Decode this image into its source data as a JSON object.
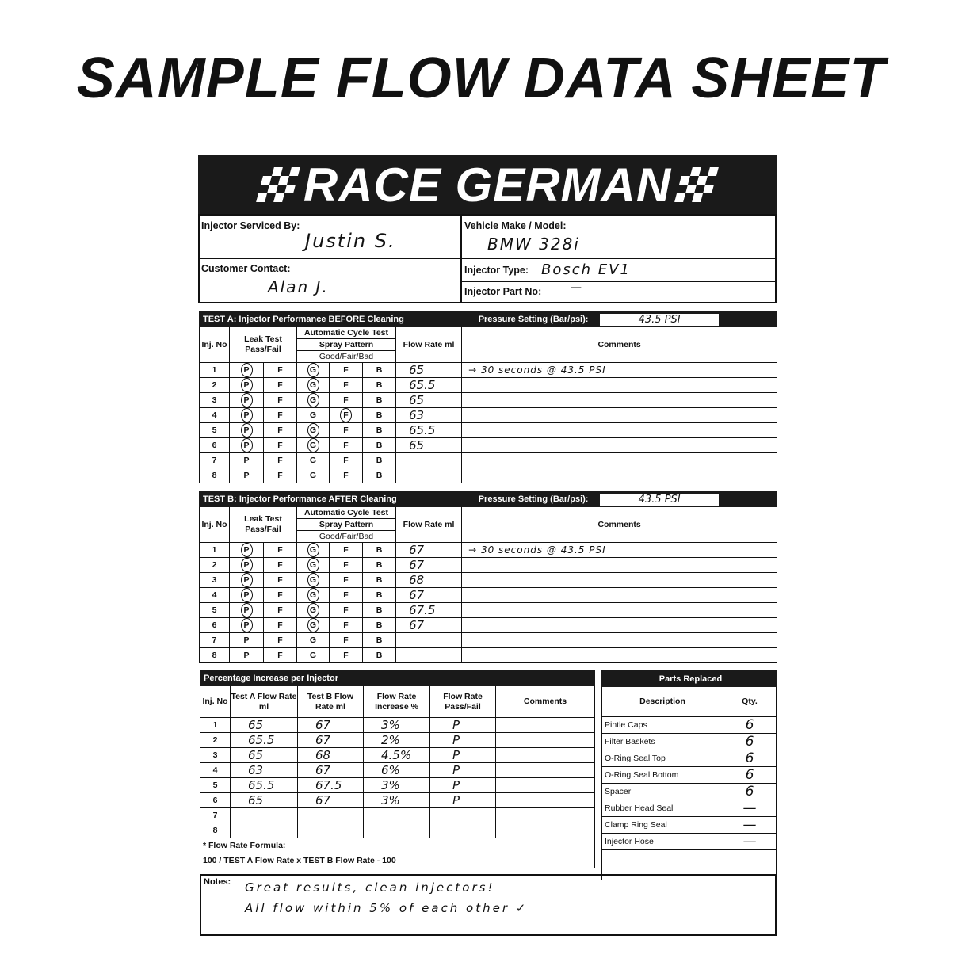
{
  "page_title": "SAMPLE FLOW DATA SHEET",
  "brand": {
    "name": "RACE GERMAN",
    "logo_icon": "checkered-flag-icon"
  },
  "info": {
    "serviced_by_label": "Injector Serviced By:",
    "serviced_by": "Justin S.",
    "vehicle_label": "Vehicle Make / Model:",
    "vehicle": "BMW 328i",
    "customer_label": "Customer Contact:",
    "customer": "Alan J.",
    "type_label": "Injector Type:",
    "type": "Bosch EV1",
    "part_label": "Injector Part No:",
    "part": "—"
  },
  "test_headers": {
    "inj": "Inj. No",
    "leak": "Leak Test Pass/Fail",
    "cycle": "Automatic Cycle Test",
    "spray": "Spray Pattern",
    "gfb": "Good/Fair/Bad",
    "flow": "Flow Rate ml",
    "comments": "Comments",
    "pressure_label": "Pressure Setting (Bar/psi):"
  },
  "tests": [
    {
      "title": "TEST A: Injector Performance BEFORE Cleaning",
      "pressure": "43.5 PSI",
      "rows": [
        {
          "no": "1",
          "leak": "P",
          "spray": "G",
          "flow": "65",
          "comment": "→ 30 seconds @ 43.5 PSI"
        },
        {
          "no": "2",
          "leak": "P",
          "spray": "G",
          "flow": "65.5",
          "comment": ""
        },
        {
          "no": "3",
          "leak": "P",
          "spray": "G",
          "flow": "65",
          "comment": ""
        },
        {
          "no": "4",
          "leak": "P",
          "spray": "F",
          "flow": "63",
          "comment": ""
        },
        {
          "no": "5",
          "leak": "P",
          "spray": "G",
          "flow": "65.5",
          "comment": ""
        },
        {
          "no": "6",
          "leak": "P",
          "spray": "G",
          "flow": "65",
          "comment": ""
        },
        {
          "no": "7",
          "leak": "",
          "spray": "",
          "flow": "",
          "comment": ""
        },
        {
          "no": "8",
          "leak": "",
          "spray": "",
          "flow": "",
          "comment": ""
        }
      ]
    },
    {
      "title": "TEST B: Injector Performance AFTER Cleaning",
      "pressure": "43.5 PSI",
      "rows": [
        {
          "no": "1",
          "leak": "P",
          "spray": "G",
          "flow": "67",
          "comment": "→ 30 seconds @ 43.5 PSI"
        },
        {
          "no": "2",
          "leak": "P",
          "spray": "G",
          "flow": "67",
          "comment": ""
        },
        {
          "no": "3",
          "leak": "P",
          "spray": "G",
          "flow": "68",
          "comment": ""
        },
        {
          "no": "4",
          "leak": "P",
          "spray": "G",
          "flow": "67",
          "comment": ""
        },
        {
          "no": "5",
          "leak": "P",
          "spray": "G",
          "flow": "67.5",
          "comment": ""
        },
        {
          "no": "6",
          "leak": "P",
          "spray": "G",
          "flow": "67",
          "comment": ""
        },
        {
          "no": "7",
          "leak": "",
          "spray": "",
          "flow": "",
          "comment": ""
        },
        {
          "no": "8",
          "leak": "",
          "spray": "",
          "flow": "",
          "comment": ""
        }
      ]
    }
  ],
  "options": {
    "pass": "P",
    "fail": "F",
    "good": "G",
    "fair": "F",
    "bad": "B"
  },
  "percentage": {
    "title": "Percentage Increase per Injector",
    "headers": [
      "Inj. No",
      "Test A Flow Rate ml",
      "Test B Flow Rate ml",
      "Flow Rate Increase %",
      "Flow Rate Pass/Fail",
      "Comments"
    ],
    "rows": [
      [
        "1",
        "65",
        "67",
        "3%",
        "P",
        ""
      ],
      [
        "2",
        "65.5",
        "67",
        "2%",
        "P",
        ""
      ],
      [
        "3",
        "65",
        "68",
        "4.5%",
        "P",
        ""
      ],
      [
        "4",
        "63",
        "67",
        "6%",
        "P",
        ""
      ],
      [
        "5",
        "65.5",
        "67.5",
        "3%",
        "P",
        ""
      ],
      [
        "6",
        "65",
        "67",
        "3%",
        "P",
        ""
      ],
      [
        "7",
        "",
        "",
        "",
        "",
        ""
      ],
      [
        "8",
        "",
        "",
        "",
        "",
        ""
      ]
    ],
    "formula_label": "* Flow Rate Formula:",
    "formula": "100 / TEST A Flow Rate x TEST B Flow Rate - 100"
  },
  "parts": {
    "title": "Parts Replaced",
    "headers": [
      "Description",
      "Qty."
    ],
    "rows": [
      [
        "Pintle Caps",
        "6"
      ],
      [
        "Filter Baskets",
        "6"
      ],
      [
        "O-Ring Seal Top",
        "6"
      ],
      [
        "O-Ring Seal Bottom",
        "6"
      ],
      [
        "Spacer",
        "6"
      ],
      [
        "Rubber Head Seal",
        "—"
      ],
      [
        "Clamp Ring Seal",
        "—"
      ],
      [
        "Injector Hose",
        "—"
      ],
      [
        "",
        ""
      ],
      [
        "",
        ""
      ]
    ]
  },
  "notes": {
    "label": "Notes:",
    "lines": [
      "Great results, clean injectors!",
      "All flow within 5% of each other ✓"
    ]
  }
}
